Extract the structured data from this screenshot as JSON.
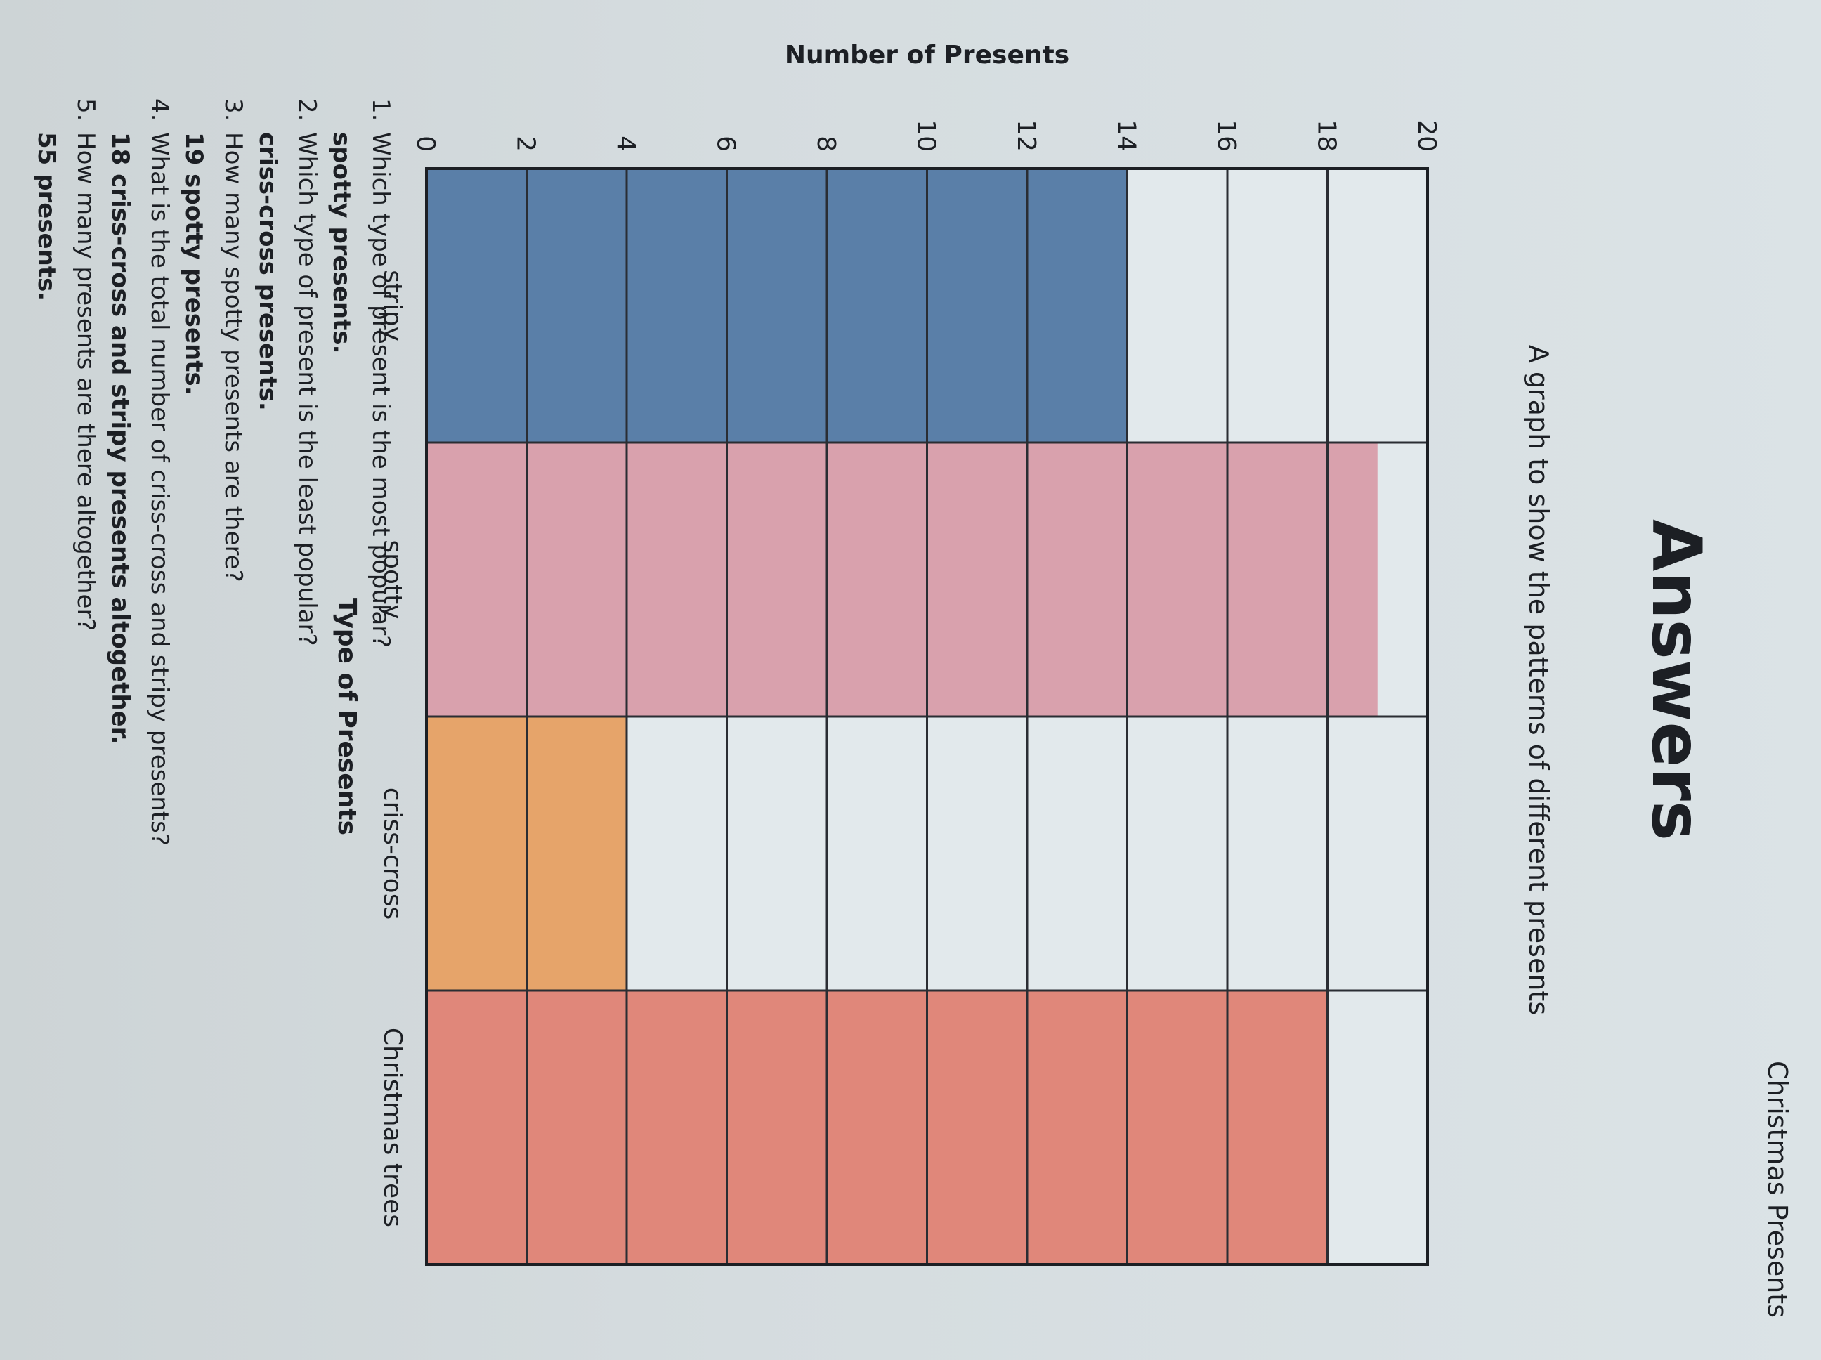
{
  "header": {
    "title": "Christmas Presents"
  },
  "page": {
    "title": "Answers"
  },
  "chart_data": {
    "type": "bar",
    "title": "A graph to show the patterns of different presents",
    "xlabel": "Type of Presents",
    "ylabel": "Number of Presents",
    "categories": [
      "stripy",
      "spotty",
      "criss-cross",
      "Christmas trees"
    ],
    "values": [
      14,
      19,
      4,
      18
    ],
    "ylim": [
      0,
      20
    ],
    "yticks": [
      "0",
      "2",
      "4",
      "6",
      "8",
      "10",
      "12",
      "14",
      "16",
      "18",
      "20"
    ],
    "grid": true,
    "colors": [
      "#5a7fa8",
      "#d9a1ad",
      "#e6a46a",
      "#e0877a"
    ]
  },
  "questions": [
    {
      "number": "1.",
      "text": "Which type of present is the most popular?",
      "answer": "spotty presents."
    },
    {
      "number": "2.",
      "text": "Which type of present is the least popular?",
      "answer": "criss-cross presents."
    },
    {
      "number": "3.",
      "text": "How many spotty presents are there?",
      "answer": "19 spotty presents."
    },
    {
      "number": "4.",
      "text": "What is the total number of criss-cross and stripy presents?",
      "answer": "18 criss-cross and stripy presents altogether."
    },
    {
      "number": "5.",
      "text": "How many presents are there altogether?",
      "answer": "55 presents."
    }
  ]
}
